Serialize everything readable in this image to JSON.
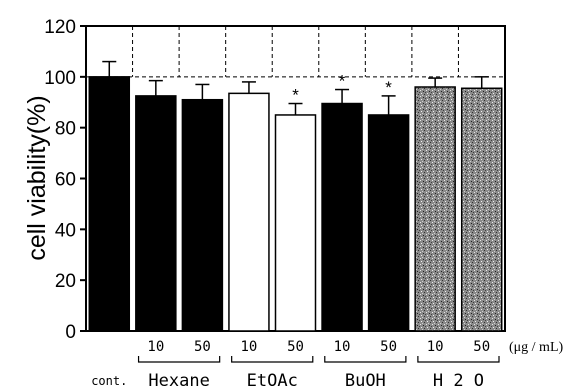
{
  "chart_data": {
    "type": "bar",
    "ylabel": "cell viability(%)",
    "ylim": [
      0,
      120
    ],
    "yticks": [
      "0",
      "20",
      "40",
      "60",
      "80",
      "100",
      "120"
    ],
    "reference_line": 100,
    "unit_label": "(μg / mL)",
    "control_label": "cont.",
    "bars": [
      {
        "group": "cont.",
        "dose": "",
        "value": 100,
        "error": 6,
        "fill": "black",
        "significant": false
      },
      {
        "group": "Hexane",
        "dose": "10",
        "value": 92.5,
        "error": 6,
        "fill": "black",
        "significant": false
      },
      {
        "group": "Hexane",
        "dose": "50",
        "value": 91,
        "error": 6,
        "fill": "black",
        "significant": false
      },
      {
        "group": "EtOAc",
        "dose": "10",
        "value": 93.5,
        "error": 4.5,
        "fill": "white",
        "significant": false
      },
      {
        "group": "EtOAc",
        "dose": "50",
        "value": 85,
        "error": 4.5,
        "fill": "white",
        "significant": true
      },
      {
        "group": "BuOH",
        "dose": "10",
        "value": 89.5,
        "error": 5.5,
        "fill": "black",
        "significant": true
      },
      {
        "group": "BuOH",
        "dose": "50",
        "value": 85,
        "error": 7.5,
        "fill": "black",
        "significant": true
      },
      {
        "group": "H₂2O",
        "dose": "10",
        "value": 96,
        "error": 3.5,
        "fill": "stipple",
        "significant": false
      },
      {
        "group": "H₂2O",
        "dose": "50",
        "value": 95.5,
        "error": 4.5,
        "fill": "stipple",
        "significant": false
      }
    ],
    "groups": [
      "Hexane",
      "EtOAc",
      "BuOH",
      "H 2 O"
    ],
    "significance_marker": "*"
  }
}
